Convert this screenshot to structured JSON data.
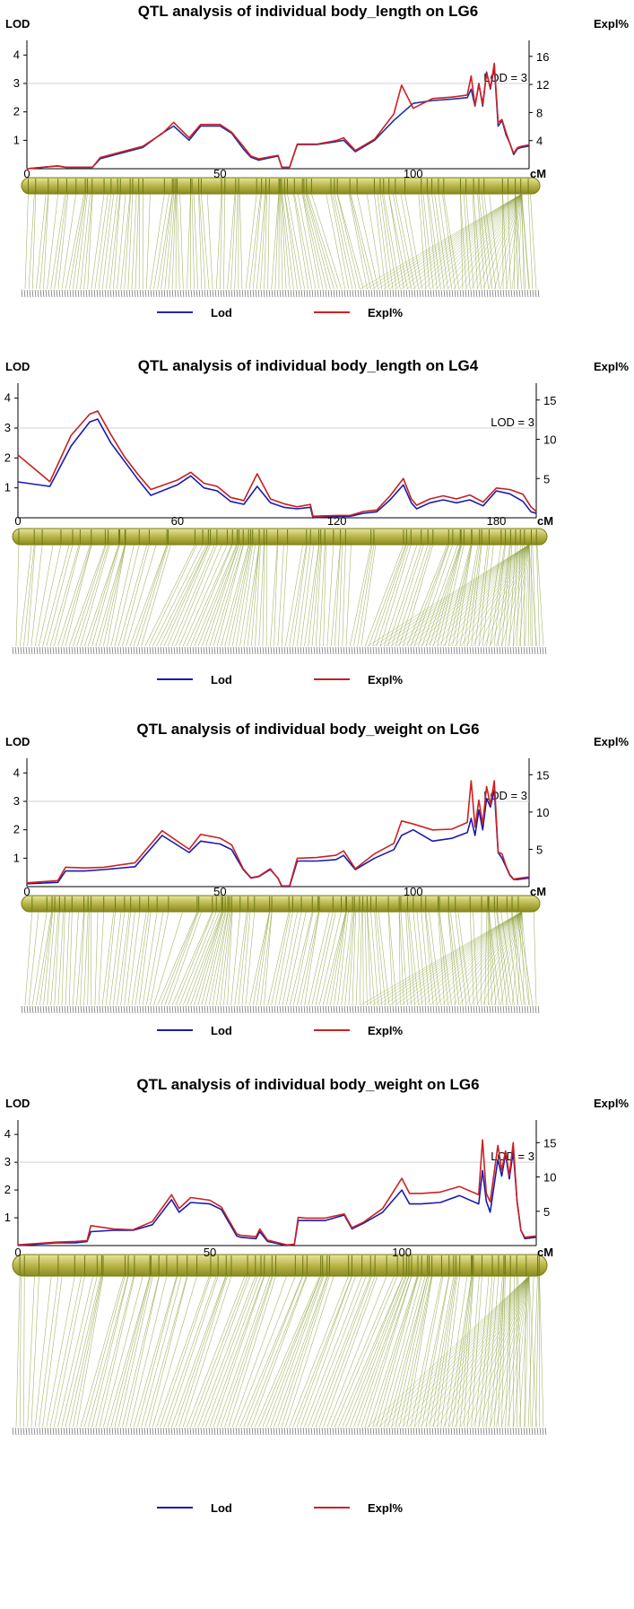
{
  "chart_data": [
    {
      "type": "line",
      "title": "QTL analysis of individual body_length on LG6",
      "ylabel": "LOD",
      "y2label": "Expl%",
      "xunit": "cM",
      "threshold_label": "LOD = 3",
      "threshold": 3,
      "xlim": [
        0,
        130
      ],
      "ylim": [
        0,
        4.2
      ],
      "y2lim": [
        0,
        17
      ],
      "x_ticks": [
        0,
        50,
        100
      ],
      "y_ticks": [
        1,
        2,
        3,
        4
      ],
      "y2_ticks": [
        4,
        8,
        12,
        16
      ],
      "series": [
        {
          "name": "Lod",
          "color": "#1f2fa3",
          "axis": "left",
          "x": [
            0,
            8,
            10,
            17,
            19,
            30,
            35,
            38,
            42,
            45,
            50,
            53,
            56,
            58,
            60,
            65,
            66,
            68,
            70,
            75,
            80,
            82,
            85,
            90,
            95,
            100,
            105,
            110,
            114,
            115,
            116,
            117,
            118,
            119,
            120,
            121,
            122,
            123,
            124,
            125,
            126,
            127,
            128,
            130
          ],
          "y": [
            0.0,
            0.1,
            0.05,
            0.05,
            0.35,
            0.75,
            1.25,
            1.5,
            1.0,
            1.5,
            1.5,
            1.25,
            0.7,
            0.4,
            0.3,
            0.45,
            0.05,
            0.05,
            0.85,
            0.85,
            0.95,
            1.0,
            0.6,
            1.0,
            1.7,
            2.3,
            2.4,
            2.45,
            2.5,
            2.8,
            2.2,
            3.0,
            2.2,
            3.4,
            2.8,
            3.6,
            1.5,
            1.7,
            1.2,
            0.9,
            0.5,
            0.7,
            0.75,
            0.8
          ]
        },
        {
          "name": "Expl%",
          "color": "#d21f1f",
          "axis": "right",
          "x": [
            0,
            8,
            10,
            17,
            19,
            30,
            35,
            38,
            42,
            45,
            50,
            53,
            56,
            58,
            60,
            65,
            66,
            68,
            70,
            75,
            80,
            82,
            85,
            90,
            95,
            97,
            100,
            105,
            110,
            114,
            115,
            116,
            117,
            118,
            119,
            120,
            121,
            122,
            123,
            124,
            125,
            126,
            127,
            128,
            130
          ],
          "y": [
            0.0,
            0.4,
            0.2,
            0.2,
            1.6,
            3.2,
            5.0,
            6.6,
            4.4,
            6.3,
            6.3,
            5.2,
            3.2,
            1.8,
            1.4,
            1.9,
            0.2,
            0.2,
            3.5,
            3.5,
            4.0,
            4.4,
            2.6,
            4.2,
            7.8,
            11.9,
            8.6,
            10.0,
            10.2,
            10.5,
            13.2,
            9.0,
            12.0,
            9.2,
            13.6,
            11.5,
            15.0,
            6.6,
            7.0,
            5.2,
            3.6,
            2.2,
            3.0,
            3.2,
            3.4
          ]
        }
      ],
      "legend": {
        "position": "bottom",
        "entries": [
          "Lod",
          "Expl%"
        ]
      }
    },
    {
      "type": "line",
      "title": "QTL analysis of individual body_length on LG4",
      "ylabel": "LOD",
      "y2label": "Expl%",
      "xunit": "cM",
      "threshold_label": "LOD = 3",
      "threshold": 3,
      "xlim": [
        0,
        195
      ],
      "ylim": [
        0,
        4.2
      ],
      "y2lim": [
        0,
        16
      ],
      "x_ticks": [
        0,
        60,
        120,
        180
      ],
      "y_ticks": [
        1,
        2,
        3,
        4
      ],
      "y2_ticks": [
        5,
        10,
        15
      ],
      "series": [
        {
          "name": "Lod",
          "color": "#1a1ab0",
          "axis": "left",
          "x": [
            0,
            12,
            20,
            27,
            30,
            35,
            40,
            45,
            50,
            60,
            65,
            70,
            75,
            80,
            85,
            90,
            95,
            100,
            105,
            110,
            111,
            120,
            125,
            130,
            135,
            140,
            145,
            148,
            150,
            155,
            160,
            165,
            170,
            175,
            180,
            185,
            190,
            193,
            195
          ],
          "y": [
            1.2,
            1.05,
            2.4,
            3.2,
            3.3,
            2.5,
            1.9,
            1.3,
            0.75,
            1.1,
            1.4,
            1.0,
            0.9,
            0.55,
            0.45,
            1.05,
            0.5,
            0.35,
            0.3,
            0.35,
            0.0,
            0.05,
            0.05,
            0.15,
            0.2,
            0.6,
            1.1,
            0.5,
            0.3,
            0.5,
            0.6,
            0.5,
            0.6,
            0.4,
            0.9,
            0.8,
            0.55,
            0.2,
            0.15
          ]
        },
        {
          "name": "Expl%",
          "color": "#c42020",
          "axis": "right",
          "x": [
            0,
            12,
            20,
            27,
            30,
            35,
            40,
            45,
            50,
            60,
            65,
            70,
            75,
            80,
            85,
            90,
            95,
            100,
            105,
            110,
            111,
            120,
            125,
            130,
            135,
            140,
            145,
            148,
            150,
            155,
            160,
            165,
            170,
            175,
            180,
            185,
            190,
            193,
            195
          ],
          "y": [
            8.0,
            4.6,
            10.5,
            13.2,
            13.6,
            10.6,
            7.8,
            5.6,
            3.6,
            4.8,
            5.8,
            4.4,
            4.0,
            2.6,
            2.2,
            5.6,
            2.4,
            1.8,
            1.4,
            1.7,
            0.2,
            0.3,
            0.3,
            0.8,
            1.0,
            2.8,
            5.0,
            2.4,
            1.6,
            2.4,
            2.8,
            2.4,
            2.9,
            2.0,
            3.8,
            3.6,
            3.0,
            1.4,
            0.8
          ]
        }
      ],
      "legend": {
        "position": "bottom",
        "entries": [
          "Lod",
          "Expl%"
        ]
      }
    },
    {
      "type": "line",
      "title": "QTL analysis of individual body_weight on LG6",
      "ylabel": "LOD",
      "y2label": "Expl%",
      "xunit": "cM",
      "threshold_label": "LOD = 3",
      "threshold": 3,
      "xlim": [
        0,
        130
      ],
      "ylim": [
        0,
        4.2
      ],
      "y2lim": [
        0,
        16
      ],
      "x_ticks": [
        0,
        50,
        100
      ],
      "y_ticks": [
        1,
        2,
        3,
        4
      ],
      "y2_ticks": [
        5,
        10,
        15
      ],
      "series": [
        {
          "name": "Lod",
          "color": "#1a1ab0",
          "axis": "left",
          "x": [
            0,
            8,
            10,
            15,
            20,
            28,
            35,
            42,
            45,
            50,
            53,
            56,
            58,
            60,
            63,
            65,
            66,
            68,
            70,
            75,
            80,
            82,
            85,
            90,
            95,
            97,
            100,
            105,
            110,
            114,
            115,
            116,
            117,
            118,
            119,
            120,
            121,
            122,
            123,
            124,
            125,
            126,
            127,
            130
          ],
          "y": [
            0.1,
            0.15,
            0.55,
            0.55,
            0.6,
            0.7,
            1.8,
            1.2,
            1.6,
            1.5,
            1.3,
            0.6,
            0.3,
            0.35,
            0.6,
            0.3,
            0.0,
            0.0,
            0.9,
            0.9,
            0.95,
            1.1,
            0.6,
            1.0,
            1.3,
            1.8,
            2.0,
            1.6,
            1.7,
            1.9,
            2.4,
            1.8,
            2.7,
            2.0,
            3.1,
            2.8,
            3.4,
            1.2,
            1.0,
            0.7,
            0.4,
            0.25,
            0.25,
            0.3
          ]
        },
        {
          "name": "Expl%",
          "color": "#cc2222",
          "axis": "right",
          "x": [
            0,
            8,
            10,
            15,
            20,
            28,
            35,
            42,
            45,
            50,
            53,
            56,
            58,
            60,
            63,
            65,
            66,
            68,
            70,
            75,
            80,
            82,
            85,
            90,
            95,
            97,
            100,
            105,
            110,
            114,
            115,
            116,
            117,
            118,
            119,
            120,
            121,
            122,
            123,
            124,
            125,
            126,
            127,
            130
          ],
          "y": [
            0.5,
            0.8,
            2.6,
            2.5,
            2.6,
            3.2,
            7.5,
            5.0,
            7.0,
            6.5,
            5.6,
            2.4,
            1.2,
            1.4,
            2.4,
            1.1,
            0.1,
            0.1,
            3.8,
            3.9,
            4.2,
            4.8,
            2.4,
            4.4,
            5.8,
            8.8,
            8.4,
            7.6,
            7.7,
            8.6,
            14.2,
            8.0,
            11.6,
            8.4,
            13.4,
            11.0,
            14.2,
            4.6,
            4.4,
            2.8,
            1.6,
            1.0,
            1.1,
            1.3
          ]
        }
      ],
      "legend": {
        "position": "bottom",
        "entries": [
          "Lod",
          "Expl%"
        ]
      }
    },
    {
      "type": "line",
      "title": "QTL analysis of individual body_weight on LG6",
      "ylabel": "LOD",
      "y2label": "Expl%",
      "xunit": "cM",
      "threshold_label": "LOD = 3",
      "threshold": 3,
      "xlim": [
        0,
        135
      ],
      "ylim": [
        0,
        4.2
      ],
      "y2lim": [
        0,
        17
      ],
      "x_ticks": [
        0,
        50,
        100
      ],
      "y_ticks": [
        1,
        2,
        3,
        4
      ],
      "y2_ticks": [
        5,
        10,
        15
      ],
      "series": [
        {
          "name": "Lod",
          "color": "#1a1ab0",
          "axis": "left",
          "x": [
            0,
            5,
            10,
            15,
            18,
            19,
            25,
            30,
            35,
            40,
            42,
            45,
            50,
            53,
            57,
            58,
            62,
            63,
            65,
            70,
            72,
            73,
            75,
            80,
            85,
            87,
            90,
            95,
            100,
            102,
            105,
            110,
            115,
            120,
            121,
            122,
            123,
            125,
            126,
            127,
            128,
            129,
            130,
            131,
            132,
            135
          ],
          "y": [
            0.0,
            0.05,
            0.1,
            0.1,
            0.15,
            0.5,
            0.55,
            0.55,
            0.75,
            1.65,
            1.2,
            1.55,
            1.5,
            1.3,
            0.35,
            0.3,
            0.25,
            0.5,
            0.15,
            0.0,
            0.05,
            0.9,
            0.9,
            0.9,
            1.1,
            0.6,
            0.8,
            1.2,
            2.0,
            1.5,
            1.5,
            1.55,
            1.8,
            1.5,
            2.7,
            1.6,
            1.2,
            3.1,
            2.5,
            3.3,
            2.4,
            3.4,
            1.6,
            0.55,
            0.25,
            0.3
          ]
        },
        {
          "name": "Expl%",
          "color": "#cc2222",
          "axis": "right",
          "x": [
            0,
            5,
            10,
            15,
            18,
            19,
            25,
            30,
            35,
            40,
            42,
            45,
            50,
            53,
            57,
            58,
            62,
            63,
            65,
            70,
            72,
            73,
            75,
            80,
            85,
            87,
            90,
            95,
            100,
            102,
            105,
            110,
            115,
            120,
            121,
            122,
            123,
            125,
            126,
            127,
            128,
            129,
            130,
            131,
            132,
            135
          ],
          "y": [
            0.1,
            0.3,
            0.5,
            0.6,
            0.7,
            2.9,
            2.4,
            2.3,
            3.5,
            7.4,
            5.4,
            7.0,
            6.6,
            5.6,
            1.7,
            1.5,
            1.3,
            2.4,
            0.8,
            0.1,
            0.2,
            4.1,
            4.0,
            4.0,
            4.6,
            2.6,
            3.4,
            5.4,
            9.8,
            7.6,
            7.6,
            7.8,
            8.6,
            7.4,
            15.4,
            7.6,
            6.4,
            14.6,
            11.0,
            13.8,
            10.2,
            15.0,
            6.4,
            2.2,
            1.2,
            1.4
          ]
        }
      ],
      "legend": {
        "position": "bottom",
        "entries": [
          "Lod",
          "Expl%"
        ]
      }
    }
  ]
}
